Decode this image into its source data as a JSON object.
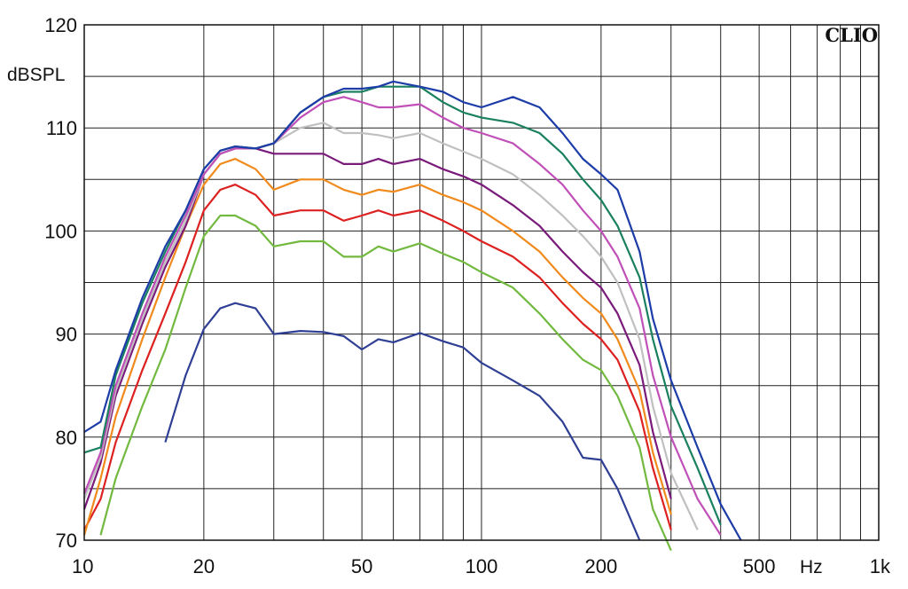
{
  "chart_data": {
    "type": "line",
    "title": "",
    "brand": "CLIO",
    "ylabel": "dBSPL",
    "xunit": "Hz",
    "xscale": "log",
    "xlim": [
      10,
      1000
    ],
    "ylim": [
      70,
      120
    ],
    "grid": true,
    "x_tick_values": [
      10,
      20,
      50,
      100,
      200,
      500,
      1000
    ],
    "x_tick_labels": [
      "10",
      "20",
      "50",
      "100",
      "200",
      "500",
      "1k"
    ],
    "y_tick_values": [
      70,
      80,
      90,
      100,
      110,
      120
    ],
    "y_tick_labels": [
      "70",
      "80",
      "90",
      "100",
      "110",
      "120"
    ],
    "x": [
      10,
      11,
      12,
      14,
      16,
      18,
      20,
      22,
      24,
      27,
      30,
      35,
      40,
      45,
      50,
      55,
      60,
      70,
      80,
      90,
      100,
      120,
      140,
      160,
      180,
      200,
      220,
      250,
      270,
      300,
      350,
      400,
      450,
      500
    ],
    "series": [
      {
        "color": "#2f3f94",
        "values": [
          null,
          null,
          null,
          null,
          79.5,
          86.0,
          90.5,
          92.5,
          93.0,
          92.5,
          90.0,
          90.3,
          90.2,
          89.8,
          88.5,
          89.5,
          89.2,
          90.1,
          89.3,
          88.7,
          87.2,
          85.5,
          84.0,
          81.5,
          78.0,
          77.8,
          75.0,
          70.0,
          null,
          null,
          null,
          null,
          null,
          null
        ]
      },
      {
        "color": "#72b940",
        "values": [
          null,
          70.5,
          76.0,
          83.0,
          88.5,
          94.5,
          99.5,
          101.5,
          101.5,
          100.5,
          98.5,
          99.0,
          99.0,
          97.5,
          97.5,
          98.5,
          98.0,
          98.8,
          97.8,
          97.0,
          96.0,
          94.5,
          92.0,
          89.5,
          87.5,
          86.5,
          84.0,
          79.0,
          73.0,
          69.0,
          null,
          null,
          null,
          null
        ]
      },
      {
        "color": "#dd2020",
        "values": [
          71.0,
          74.0,
          79.5,
          86.5,
          92.0,
          97.0,
          102.0,
          104.0,
          104.5,
          103.5,
          101.5,
          102.0,
          102.0,
          101.0,
          101.5,
          102.0,
          101.5,
          102.0,
          101.0,
          100.0,
          99.0,
          97.5,
          95.5,
          93.0,
          91.0,
          89.5,
          87.5,
          82.5,
          77.0,
          71.0,
          null,
          null,
          null,
          null
        ]
      },
      {
        "color": "#f08a1c",
        "values": [
          70.5,
          76.0,
          82.0,
          89.5,
          95.5,
          100.5,
          104.5,
          106.5,
          107.0,
          106.0,
          104.0,
          105.0,
          105.0,
          104.0,
          103.5,
          104.0,
          103.8,
          104.5,
          103.5,
          102.8,
          102.0,
          100.0,
          98.0,
          95.5,
          93.5,
          92.0,
          89.5,
          84.5,
          78.5,
          72.5,
          null,
          null,
          null,
          null
        ]
      },
      {
        "color": "#7a1a7a",
        "values": [
          73.0,
          77.5,
          84.0,
          91.0,
          96.5,
          100.5,
          105.5,
          107.5,
          108.0,
          108.0,
          107.5,
          107.5,
          107.5,
          106.5,
          106.5,
          107.0,
          106.5,
          107.0,
          106.0,
          105.3,
          104.5,
          102.5,
          100.5,
          98.0,
          96.0,
          94.5,
          92.0,
          87.0,
          80.5,
          74.0,
          null,
          null,
          null,
          null
        ]
      },
      {
        "color": "#c0c0c0",
        "values": [
          74.0,
          78.0,
          84.5,
          91.5,
          97.0,
          101.0,
          105.5,
          107.5,
          108.0,
          108.0,
          108.5,
          110.0,
          110.5,
          109.5,
          109.5,
          109.3,
          109.0,
          109.5,
          108.5,
          107.7,
          107.0,
          105.5,
          103.5,
          101.5,
          99.5,
          97.5,
          95.0,
          89.5,
          83.0,
          76.5,
          71.0,
          null,
          null,
          null
        ]
      },
      {
        "color": "#c050b8",
        "values": [
          74.5,
          78.5,
          85.0,
          92.0,
          97.5,
          101.5,
          105.5,
          107.5,
          108.0,
          108.0,
          108.5,
          111.0,
          112.5,
          113.0,
          112.5,
          112.0,
          112.0,
          112.3,
          111.0,
          110.0,
          109.5,
          108.5,
          106.5,
          104.5,
          102.0,
          100.0,
          97.5,
          92.5,
          86.0,
          80.0,
          74.0,
          70.5,
          null,
          null
        ]
      },
      {
        "color": "#1a8060",
        "values": [
          78.5,
          79.0,
          86.0,
          93.0,
          98.0,
          102.0,
          106.0,
          107.8,
          108.2,
          108.0,
          108.5,
          111.5,
          113.0,
          113.5,
          113.5,
          114.0,
          114.0,
          114.0,
          112.5,
          111.5,
          111.0,
          110.5,
          109.5,
          107.5,
          105.0,
          103.0,
          100.5,
          95.5,
          89.5,
          83.0,
          77.0,
          71.5,
          null,
          null
        ]
      },
      {
        "color": "#1c3ca8",
        "values": [
          80.5,
          81.5,
          86.5,
          93.5,
          98.5,
          102.0,
          106.0,
          107.8,
          108.2,
          108.0,
          108.5,
          111.5,
          113.0,
          113.8,
          113.8,
          114.0,
          114.5,
          114.0,
          113.5,
          112.5,
          112.0,
          113.0,
          112.0,
          109.5,
          107.0,
          105.5,
          104.0,
          98.0,
          91.5,
          85.5,
          79.0,
          73.5,
          70.0,
          null
        ]
      }
    ]
  }
}
